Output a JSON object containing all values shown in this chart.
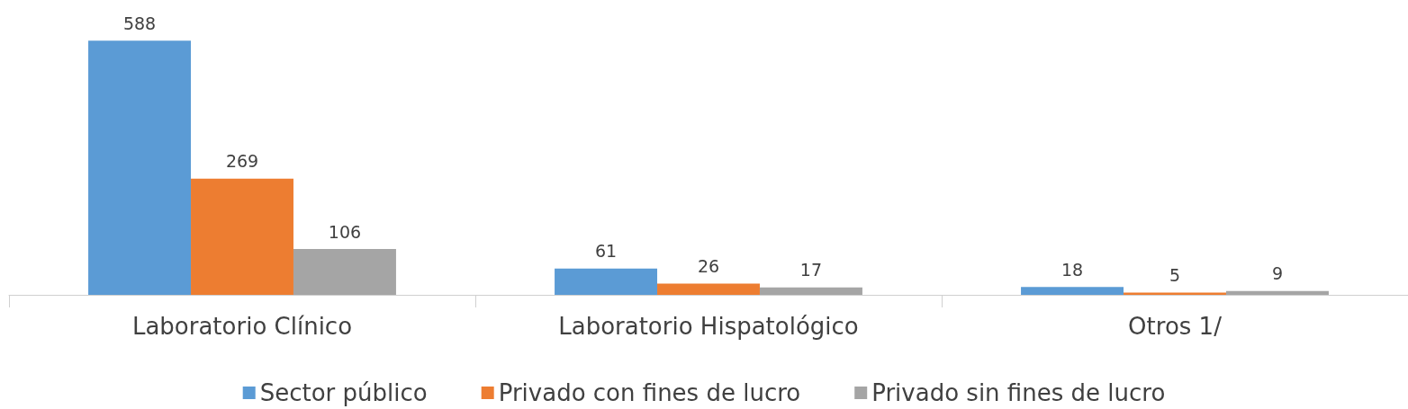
{
  "chart_data": {
    "type": "bar",
    "categories": [
      "Laboratorio Clínico",
      "Laboratorio Hispatológico",
      "Otros 1/"
    ],
    "series": [
      {
        "name": "Sector público",
        "color": "#5b9bd5",
        "values": [
          588,
          61,
          18
        ]
      },
      {
        "name": "Privado con fines de lucro",
        "color": "#ed7d31",
        "values": [
          269,
          26,
          5
        ]
      },
      {
        "name": "Privado sin fines de lucro",
        "color": "#a5a5a5",
        "values": [
          106,
          17,
          9
        ]
      }
    ],
    "data_labels": true,
    "legend": "bottom"
  }
}
